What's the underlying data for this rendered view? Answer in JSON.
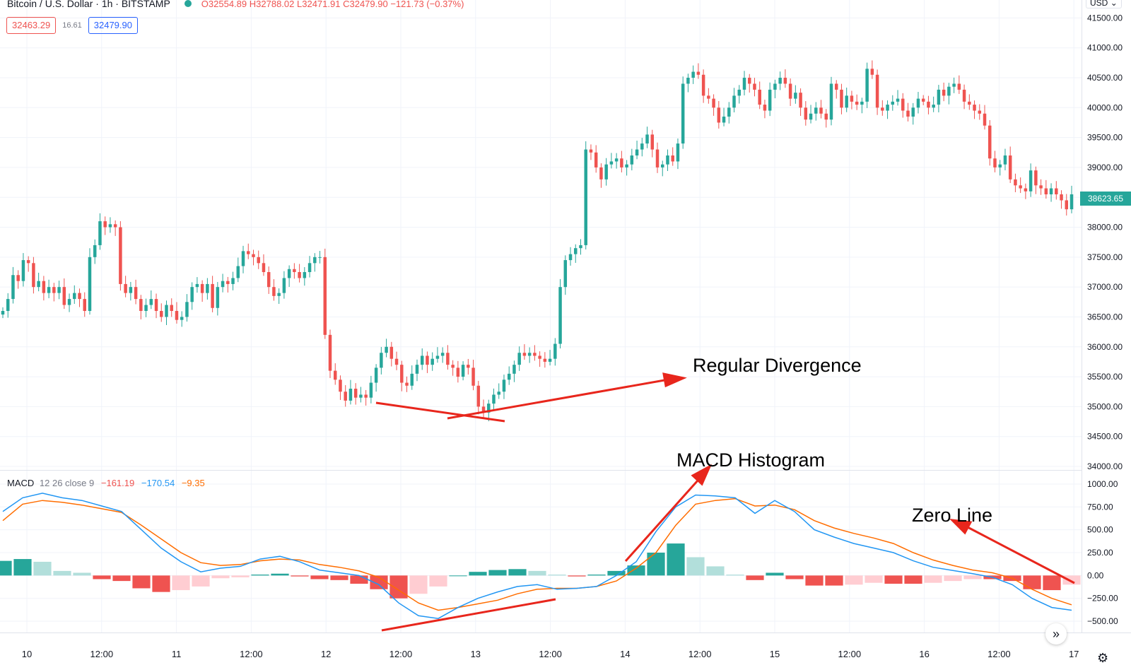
{
  "header": {
    "symbol": "Bitcoin / U.S. Dollar · 1h · BITSTAMP",
    "open": "O32554.89",
    "high": "H32788.02",
    "low": "L32471.91",
    "close": "C32479.90",
    "change": "−121.73 (−0.37%)",
    "sell_price": "32463.29",
    "spread": "16.61",
    "buy_price": "32479.90",
    "currency": "USD"
  },
  "last_price_label": "38623.65",
  "macd_legend": {
    "name": "MACD",
    "params": "12 26 close 9",
    "hist": "−161.19",
    "macd": "−170.54",
    "signal": "−9.35"
  },
  "annotations": {
    "divergence": "Regular Divergence",
    "histogram": "MACD Histogram",
    "zero_line": "Zero Line"
  },
  "colors": {
    "up": "#26a69a",
    "down": "#ef5350",
    "up_light": "#b2dfdb",
    "down_light": "#ffcdd2",
    "macd_line": "#2196f3",
    "signal_line": "#ff6d00",
    "annotation_arrow": "#e8261c"
  },
  "chart_data": [
    {
      "type": "candlestick",
      "ylim": [
        34000,
        41800
      ],
      "y_ticks": [
        "41500.00",
        "41000.00",
        "40500.00",
        "40000.00",
        "39500.00",
        "39000.00",
        "38500.00",
        "38000.00",
        "37500.00",
        "37000.00",
        "36500.00",
        "36000.00",
        "35500.00",
        "35000.00",
        "34500.00",
        "34000.00"
      ],
      "x_ticks": [
        "10",
        "12:00",
        "11",
        "12:00",
        "12",
        "12:00",
        "13",
        "12:00",
        "14",
        "12:00",
        "15",
        "12:00",
        "16",
        "12:00",
        "17"
      ],
      "closes": [
        36600,
        36800,
        37200,
        37100,
        37450,
        37400,
        37000,
        37100,
        36900,
        37000,
        36900,
        37000,
        36700,
        36800,
        36900,
        36800,
        36600,
        37500,
        37700,
        38100,
        38000,
        38050,
        38000,
        37050,
        36900,
        37000,
        36800,
        36600,
        36700,
        36800,
        36600,
        36500,
        36700,
        36600,
        36450,
        36500,
        36750,
        37000,
        37050,
        36900,
        37050,
        36650,
        37000,
        37100,
        37050,
        37150,
        37350,
        37600,
        37550,
        37500,
        37400,
        37250,
        37000,
        36850,
        36900,
        37150,
        37300,
        37250,
        37150,
        37250,
        37400,
        37500,
        37500,
        36200,
        35600,
        35450,
        35250,
        35100,
        35300,
        35150,
        35200,
        35150,
        35400,
        35650,
        35900,
        36000,
        35800,
        35700,
        35400,
        35350,
        35550,
        35700,
        35850,
        35700,
        35800,
        35850,
        35900,
        35700,
        35650,
        35500,
        35700,
        35650,
        35350,
        35000,
        34900,
        35050,
        35200,
        35250,
        35450,
        35550,
        35700,
        35900,
        35850,
        35900,
        35850,
        35800,
        35750,
        35800,
        36050,
        37000,
        37450,
        37550,
        37650,
        37700,
        39300,
        39250,
        39000,
        38800,
        39050,
        39100,
        39150,
        39000,
        39050,
        39200,
        39300,
        39400,
        39550,
        39300,
        39000,
        39050,
        39200,
        39100,
        39400,
        40400,
        40500,
        40600,
        40550,
        40200,
        40150,
        40000,
        39750,
        39850,
        40000,
        40200,
        40300,
        40500,
        40400,
        40300,
        40050,
        39950,
        40300,
        40400,
        40500,
        40400,
        40150,
        40250,
        40000,
        39800,
        39900,
        40000,
        39900,
        39800,
        40400,
        40300,
        40000,
        40200,
        40100,
        40050,
        40100,
        40650,
        40550,
        40000,
        39950,
        40050,
        40100,
        40150,
        39950,
        39850,
        40000,
        40150,
        40100,
        40000,
        40050,
        40300,
        40200,
        40350,
        40400,
        40300,
        40100,
        40050,
        39950,
        39900,
        39700,
        39150,
        39000,
        39050,
        39200,
        38800,
        38700,
        38650,
        38600,
        38950,
        38700,
        38650,
        38550,
        38650,
        38550,
        38450,
        38300,
        38550
      ]
    },
    {
      "type": "macd",
      "ylim": [
        -600,
        1100
      ],
      "y_ticks": [
        "1000.00",
        "750.00",
        "500.00",
        "250.00",
        "0.00",
        "−250.00",
        "−500.00"
      ],
      "macd": [
        700,
        850,
        900,
        850,
        820,
        760,
        700,
        500,
        300,
        150,
        40,
        80,
        100,
        180,
        210,
        150,
        60,
        30,
        0,
        -100,
        -300,
        -440,
        -470,
        -350,
        -250,
        -180,
        -120,
        -100,
        -150,
        -140,
        -120,
        0,
        150,
        480,
        750,
        880,
        870,
        850,
        680,
        820,
        700,
        500,
        420,
        350,
        300,
        250,
        160,
        90,
        55,
        20,
        -20,
        -100,
        -250,
        -350,
        -380
      ],
      "signal": [
        600,
        780,
        820,
        800,
        770,
        730,
        690,
        550,
        400,
        250,
        140,
        110,
        120,
        160,
        180,
        170,
        120,
        90,
        50,
        -20,
        -160,
        -300,
        -380,
        -350,
        -310,
        -270,
        -200,
        -150,
        -140,
        -140,
        -120,
        -60,
        80,
        250,
        550,
        780,
        820,
        840,
        760,
        770,
        720,
        600,
        520,
        460,
        410,
        350,
        250,
        170,
        110,
        60,
        30,
        -30,
        -150,
        -250,
        -320
      ],
      "histogram": [
        160,
        180,
        150,
        50,
        30,
        -40,
        -60,
        -140,
        -180,
        -160,
        -120,
        -30,
        -20,
        10,
        20,
        -10,
        -40,
        -50,
        -90,
        -150,
        -250,
        -200,
        -120,
        0,
        40,
        60,
        70,
        50,
        10,
        -10,
        10,
        50,
        110,
        250,
        350,
        200,
        100,
        10,
        -50,
        30,
        -40,
        -110,
        -110,
        -100,
        -80,
        -90,
        -90,
        -80,
        -60,
        -40,
        -40,
        -60,
        -150,
        -160,
        -100
      ]
    }
  ]
}
